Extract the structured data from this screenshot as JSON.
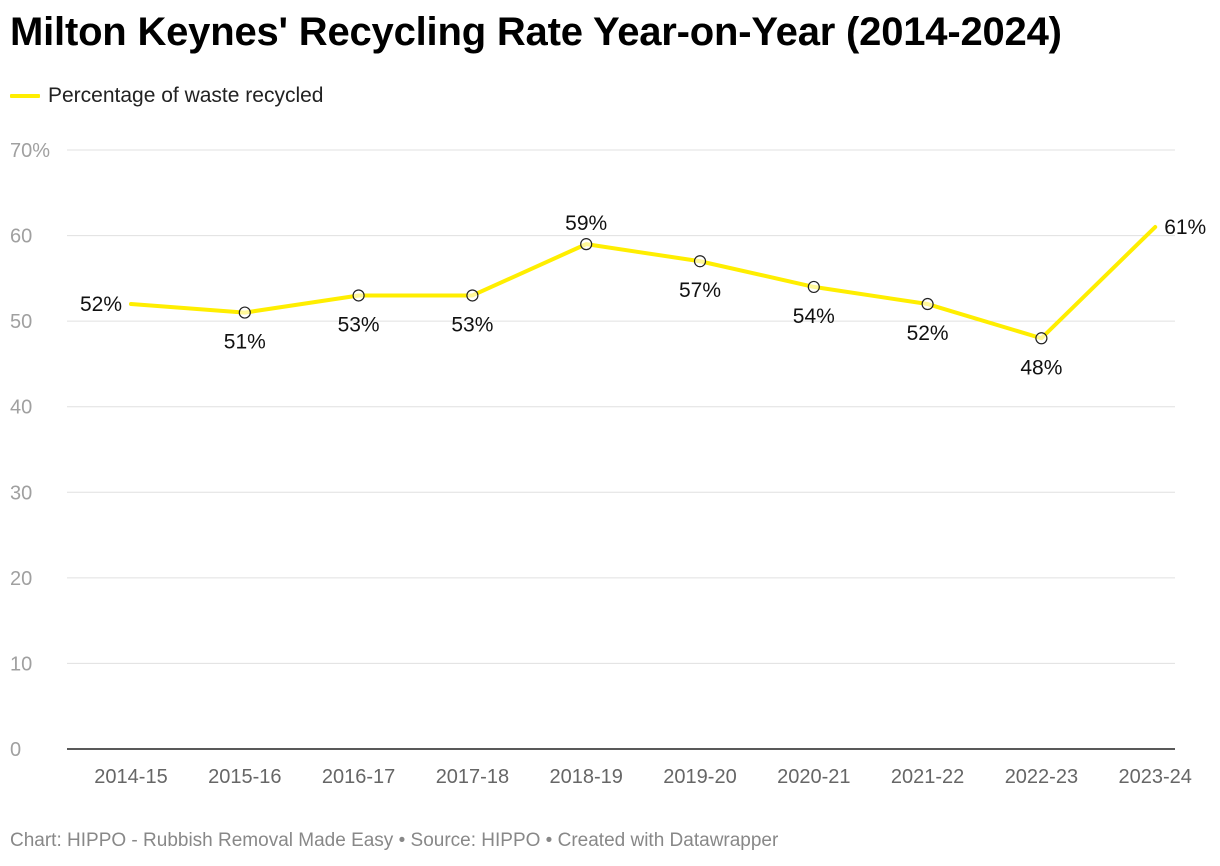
{
  "chart_data": {
    "type": "line",
    "title": "Milton Keynes' Recycling Rate Year-on-Year (2014-2024)",
    "categories": [
      "2014-15",
      "2015-16",
      "2016-17",
      "2017-18",
      "2018-19",
      "2019-20",
      "2020-21",
      "2021-22",
      "2022-23",
      "2023-24"
    ],
    "series": [
      {
        "name": "Percentage of waste recycled",
        "values": [
          52,
          51,
          53,
          53,
          59,
          57,
          54,
          52,
          48,
          61
        ],
        "labels": [
          "52%",
          "51%",
          "53%",
          "53%",
          "59%",
          "57%",
          "54%",
          "52%",
          "48%",
          "61%"
        ],
        "label_positions": [
          "left",
          "below",
          "below",
          "below",
          "above",
          "below",
          "below",
          "below",
          "below",
          "right"
        ],
        "markers": [
          false,
          true,
          true,
          true,
          true,
          true,
          true,
          true,
          true,
          false
        ],
        "color": "#ffee00"
      }
    ],
    "ylim": [
      0,
      70
    ],
    "yticks": [
      0,
      10,
      20,
      30,
      40,
      50,
      60,
      70
    ],
    "ytick_labels": [
      "0",
      "10",
      "20",
      "30",
      "40",
      "50",
      "60",
      "70%"
    ],
    "xlabel": "",
    "ylabel": "",
    "grid": true,
    "legend": "top-left"
  },
  "footer": {
    "text": "Chart: HIPPO - Rubbish Removal Made Easy • Source: HIPPO • Created with Datawrapper"
  },
  "colors": {
    "line": "#ffee00",
    "grid": "#e0e0e0",
    "axis": "#222222",
    "tick_label": "#a0a0a0",
    "category_label": "#666666",
    "data_label": "#111111"
  }
}
